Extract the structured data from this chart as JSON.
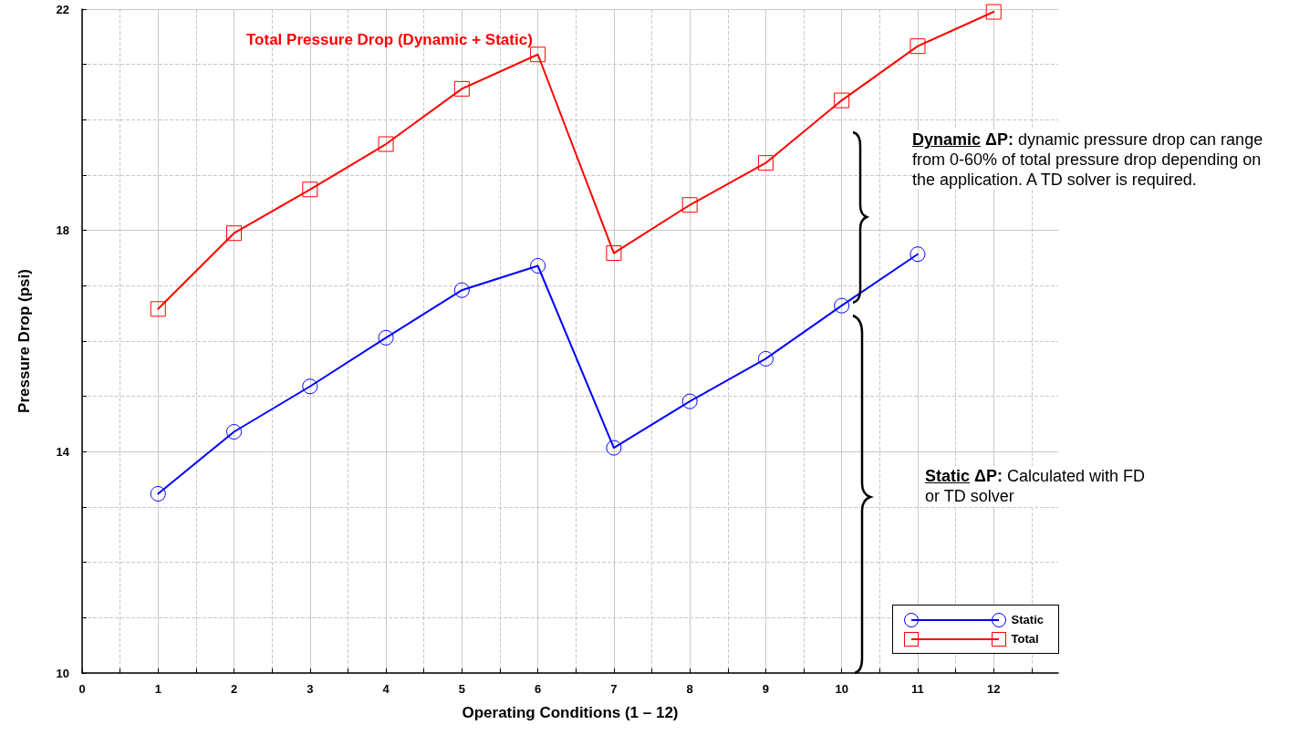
{
  "chart_data": {
    "type": "line",
    "title": "Total Pressure Drop (Dynamic + Static)",
    "xlabel": "Operating Conditions (1 – 12)",
    "ylabel": "Pressure Drop (psi)",
    "x": [
      1,
      2,
      3,
      4,
      5,
      6,
      7,
      8,
      9,
      10,
      11,
      12
    ],
    "series": [
      {
        "name": "Static",
        "color": "#0000ff",
        "marker": "circle",
        "values": [
          13.24,
          14.36,
          15.18,
          16.06,
          16.92,
          17.36,
          14.07,
          14.91,
          15.68,
          16.64,
          17.57,
          null
        ]
      },
      {
        "name": "Total",
        "color": "#ff0000",
        "marker": "square",
        "values": [
          16.58,
          17.95,
          18.74,
          19.56,
          20.56,
          21.18,
          17.59,
          18.46,
          19.22,
          20.35,
          21.33,
          21.95
        ]
      }
    ],
    "xlim": [
      0,
      12.85
    ],
    "xticks": [
      0,
      {
        "value": 0.5,
        "label": null
      },
      1,
      {
        "value": 1.5,
        "label": null
      },
      2,
      {
        "value": 2.5,
        "label": null
      },
      3,
      {
        "value": 3.5,
        "label": null
      },
      4,
      {
        "value": 4.5,
        "label": null
      },
      5,
      {
        "value": 5.5,
        "label": null
      },
      6,
      {
        "value": 6.5,
        "label": null
      },
      7,
      {
        "value": 7.5,
        "label": null
      },
      8,
      {
        "value": 8.5,
        "label": null
      },
      9,
      {
        "value": 9.5,
        "label": null
      },
      10,
      {
        "value": 10.5,
        "label": null
      },
      11,
      {
        "value": 11.5,
        "label": null
      },
      12,
      {
        "value": 12.5,
        "label": null
      }
    ],
    "ylim": [
      10,
      22
    ],
    "yticks": [
      10,
      {
        "value": 11,
        "label": null
      },
      {
        "value": 12,
        "label": null
      },
      {
        "value": 13,
        "label": null
      },
      14,
      {
        "value": 15,
        "label": null
      },
      {
        "value": 16,
        "label": null
      },
      {
        "value": 17,
        "label": null
      },
      18,
      {
        "value": 19,
        "label": null
      },
      {
        "value": 20,
        "label": null
      },
      {
        "value": 21,
        "label": null
      },
      22
    ],
    "annotations": [
      "Dynamic ΔP: dynamic pressure drop can range from 0-60% of total pressure drop depending on the application. A TD solver is required.",
      "Static ΔP: Calculated with FD or TD solver"
    ],
    "grid": true,
    "legend": "bottom right",
    "line_style": "solid"
  }
}
